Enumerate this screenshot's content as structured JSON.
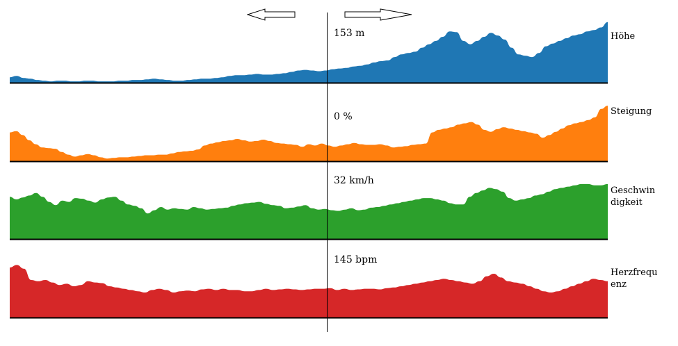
{
  "nav": {
    "left_arrow_icon": "arrow-left-icon",
    "right_arrow_icon": "arrow-right-icon"
  },
  "cursor": {
    "readouts": {
      "hoehe": "153 m",
      "steigung": "0 %",
      "geschwindigkeit": "32 km/h",
      "herzfrequenz": "145 bpm"
    }
  },
  "chart_data": [
    {
      "type": "area",
      "series": [
        {
          "name": "Höhe",
          "color": "#1f77b4",
          "values": [
            8,
            10,
            7,
            6,
            4,
            3,
            2,
            3,
            3,
            2,
            2,
            3,
            3,
            2,
            2,
            2,
            3,
            3,
            4,
            4,
            5,
            6,
            5,
            4,
            3,
            3,
            4,
            5,
            6,
            6,
            7,
            8,
            10,
            11,
            11,
            12,
            13,
            12,
            12,
            13,
            14,
            16,
            18,
            19,
            18,
            17,
            18,
            20,
            21,
            22,
            24,
            25,
            27,
            30,
            32,
            33,
            38,
            42,
            44,
            46,
            52,
            57,
            62,
            68,
            76,
            75,
            62,
            57,
            62,
            68,
            74,
            70,
            64,
            52,
            42,
            40,
            38,
            44,
            54,
            58,
            62,
            66,
            70,
            72,
            76,
            78,
            82,
            90
          ]
        }
      ]
    },
    {
      "type": "area",
      "series": [
        {
          "name": "Steigung",
          "color": "#ff7f0e",
          "values": [
            44,
            46,
            40,
            32,
            26,
            21,
            20,
            19,
            14,
            10,
            7,
            9,
            11,
            9,
            6,
            4,
            5,
            6,
            6,
            7,
            8,
            9,
            9,
            10,
            10,
            12,
            14,
            15,
            16,
            18,
            24,
            27,
            29,
            31,
            32,
            34,
            32,
            30,
            31,
            33,
            31,
            28,
            27,
            26,
            25,
            22,
            26,
            24,
            27,
            24,
            22,
            24,
            26,
            28,
            26,
            25,
            25,
            26,
            24,
            21,
            22,
            23,
            25,
            26,
            27,
            44,
            48,
            50,
            52,
            56,
            58,
            60,
            56,
            48,
            45,
            49,
            52,
            50,
            48,
            46,
            44,
            42,
            36,
            40,
            45,
            50,
            55,
            58,
            60,
            63,
            67,
            80,
            85
          ]
        }
      ]
    },
    {
      "type": "area",
      "series": [
        {
          "name": "Geschwindigkeit",
          "color": "#2ca02c",
          "values": [
            66,
            62,
            65,
            68,
            72,
            66,
            58,
            53,
            60,
            58,
            64,
            63,
            60,
            57,
            62,
            65,
            66,
            60,
            54,
            52,
            48,
            40,
            45,
            50,
            46,
            48,
            47,
            46,
            50,
            48,
            46,
            47,
            48,
            49,
            52,
            54,
            56,
            57,
            58,
            55,
            53,
            52,
            48,
            49,
            51,
            53,
            48,
            46,
            47,
            45,
            44,
            46,
            48,
            45,
            46,
            49,
            50,
            52,
            54,
            56,
            58,
            60,
            62,
            64,
            64,
            62,
            60,
            56,
            54,
            54,
            66,
            72,
            76,
            80,
            78,
            74,
            64,
            60,
            62,
            64,
            68,
            70,
            74,
            78,
            80,
            82,
            84,
            86,
            86,
            84,
            84,
            86
          ]
        }
      ]
    },
    {
      "type": "area",
      "series": [
        {
          "name": "Herzfrequenz",
          "color": "#d62728",
          "values": [
            80,
            84,
            78,
            60,
            58,
            60,
            56,
            52,
            54,
            50,
            52,
            58,
            56,
            55,
            50,
            48,
            46,
            44,
            42,
            40,
            44,
            46,
            44,
            40,
            42,
            43,
            42,
            45,
            46,
            44,
            46,
            44,
            44,
            42,
            42,
            44,
            46,
            44,
            45,
            46,
            45,
            44,
            45,
            46,
            46,
            47,
            44,
            46,
            44,
            45,
            46,
            46,
            45,
            47,
            48,
            50,
            52,
            54,
            56,
            58,
            60,
            62,
            60,
            58,
            56,
            54,
            58,
            66,
            70,
            64,
            58,
            56,
            54,
            50,
            46,
            42,
            40,
            42,
            46,
            50,
            54,
            58,
            62,
            60,
            58
          ]
        }
      ]
    }
  ]
}
